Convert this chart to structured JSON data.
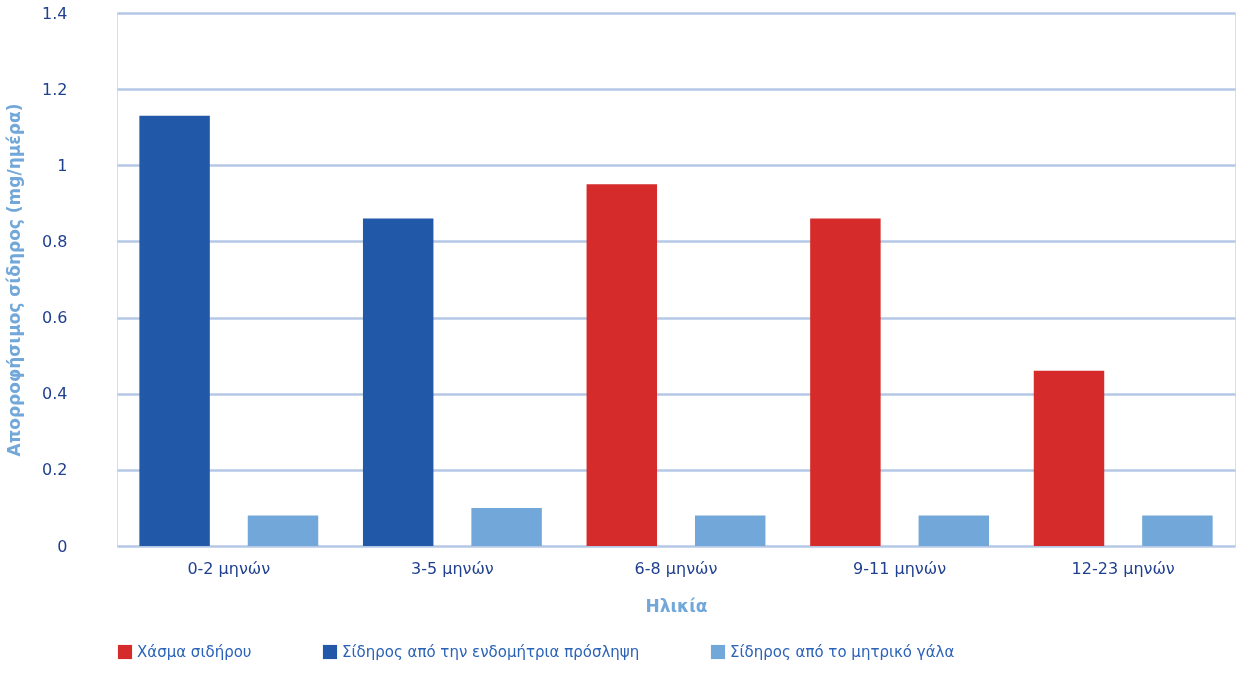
{
  "chart_data": {
    "type": "bar",
    "xlabel": "Ηλικία",
    "ylabel": "Απορροφήσιμος σίδηρος (mg/ημέρα)",
    "categories": [
      "0-2 μηνών",
      "3-5 μηνών",
      "6-8 μηνών",
      "9-11 μηνών",
      "12-23 μηνών"
    ],
    "series": [
      {
        "name": "Χάσμα σιδήρου",
        "color": "#d52b2b",
        "values": [
          null,
          null,
          0.95,
          0.86,
          0.46
        ]
      },
      {
        "name": "Σίδηρος από την ενδομήτρια πρόσληψη",
        "color": "#2258a8",
        "values": [
          1.13,
          0.86,
          null,
          null,
          null
        ]
      },
      {
        "name": "Σίδηρος από το μητρικό γάλα",
        "color": "#72a7d9",
        "values": [
          0.08,
          0.1,
          0.08,
          0.08,
          0.08
        ]
      }
    ],
    "ylim": [
      0,
      1.4
    ],
    "yticks": [
      0,
      0.2,
      0.4,
      0.6,
      0.8,
      1,
      1.2,
      1.4
    ],
    "grid": "y",
    "legend": "bottom"
  }
}
